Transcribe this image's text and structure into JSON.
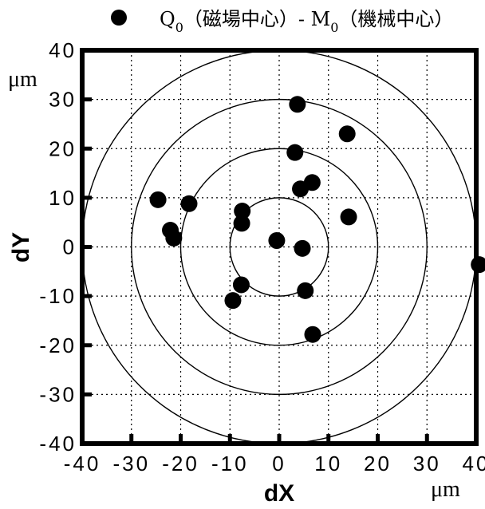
{
  "legend": {
    "label": "Q",
    "label_sub": "0",
    "label_mid": "（磁場中心）- M",
    "label_sub2": "0",
    "label_end": "（機械中心）"
  },
  "chart_data": {
    "type": "scatter",
    "xlabel": "dX",
    "ylabel": "dY",
    "x_unit": "μm",
    "y_unit": "μm",
    "xlim": [
      -40,
      40
    ],
    "ylim": [
      -40,
      40
    ],
    "grid": true,
    "xticks": [
      -40,
      -30,
      -20,
      -10,
      0,
      10,
      20,
      30,
      40
    ],
    "yticks": [
      -40,
      -30,
      -20,
      -10,
      0,
      10,
      20,
      30,
      40
    ],
    "xtick_labels": [
      "-40",
      "-30",
      "-20",
      "-10",
      "0",
      "10",
      "20",
      "30",
      "40"
    ],
    "ytick_labels": [
      "-40",
      "-30",
      "-20",
      "-10",
      "0",
      "10",
      "20",
      "30",
      "40"
    ],
    "reference_circle_radii": [
      10,
      20,
      30,
      40
    ],
    "marker_color": "#000000",
    "points": [
      {
        "x": 3.7,
        "y": 29
      },
      {
        "x": 13.8,
        "y": 23
      },
      {
        "x": 3.2,
        "y": 19.2
      },
      {
        "x": 4.3,
        "y": 11.8
      },
      {
        "x": 6.7,
        "y": 13.1
      },
      {
        "x": 14.1,
        "y": 6.1
      },
      {
        "x": -24.6,
        "y": 9.6
      },
      {
        "x": -18.3,
        "y": 8.8
      },
      {
        "x": -7.5,
        "y": 7.3
      },
      {
        "x": -7.6,
        "y": 4.8
      },
      {
        "x": -22.1,
        "y": 3.4
      },
      {
        "x": -21.4,
        "y": 1.8
      },
      {
        "x": -0.5,
        "y": 1.3
      },
      {
        "x": 4.7,
        "y": -0.3
      },
      {
        "x": -7.7,
        "y": -7.7
      },
      {
        "x": 5.3,
        "y": -8.9
      },
      {
        "x": -9.4,
        "y": -10.9
      },
      {
        "x": 6.8,
        "y": -17.8
      },
      {
        "x": 40.6,
        "y": -3.6
      }
    ]
  }
}
